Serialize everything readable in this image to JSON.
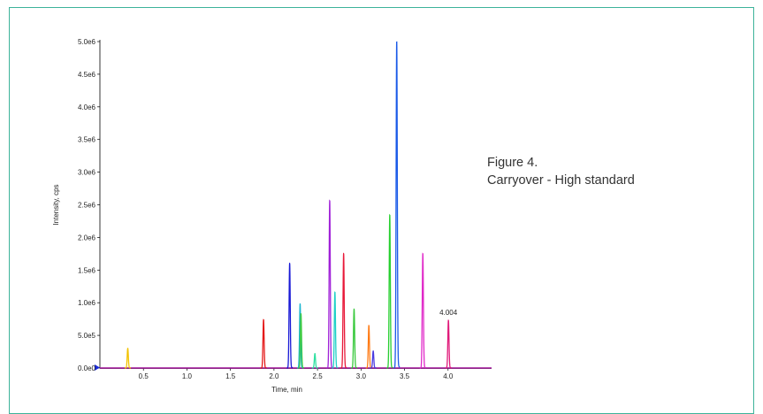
{
  "figure": {
    "caption_line1": "Figure 4.",
    "caption_line2": "Carryover - High standard"
  },
  "colors": {
    "frame": "#3cb39a",
    "axis": "#000000",
    "baseline": "#a3159b"
  },
  "chart_data": {
    "type": "line",
    "title": "",
    "xlabel": "Time, min",
    "ylabel": "Intensity, cps",
    "xlim": [
      0.0,
      4.5
    ],
    "ylim": [
      0,
      5000000
    ],
    "xticks": [
      0.5,
      1.0,
      1.5,
      2.0,
      2.5,
      3.0,
      3.5,
      4.0
    ],
    "xtick_labels": [
      "0.5",
      "1.0",
      "1.5",
      "2.0",
      "2.5",
      "3.0",
      "3.5",
      "4.0"
    ],
    "yticks": [
      0,
      500000,
      1000000,
      1500000,
      2000000,
      2500000,
      3000000,
      3500000,
      4000000,
      4500000,
      5000000
    ],
    "ytick_labels": [
      "0.0e0",
      "5.0e5",
      "1.0e6",
      "1.5e6",
      "2.0e6",
      "2.5e6",
      "3.0e6",
      "3.5e6",
      "4.0e6",
      "4.5e6",
      "5.0e6"
    ],
    "grid": false,
    "series": [
      {
        "rt": 0.32,
        "height": 300000,
        "color": "#f2c200"
      },
      {
        "rt": 1.88,
        "height": 740000,
        "color": "#e41a1a"
      },
      {
        "rt": 2.18,
        "height": 1600000,
        "color": "#1a1ad6"
      },
      {
        "rt": 2.3,
        "height": 980000,
        "color": "#18b5d0"
      },
      {
        "rt": 2.31,
        "height": 830000,
        "color": "#3ecb3e"
      },
      {
        "rt": 2.47,
        "height": 220000,
        "color": "#2ee0a0"
      },
      {
        "rt": 2.64,
        "height": 2560000,
        "color": "#a020d8"
      },
      {
        "rt": 2.7,
        "height": 1160000,
        "color": "#20d0c8"
      },
      {
        "rt": 2.8,
        "height": 1750000,
        "color": "#e81a3a"
      },
      {
        "rt": 2.92,
        "height": 900000,
        "color": "#36c83a"
      },
      {
        "rt": 3.09,
        "height": 650000,
        "color": "#ff7a14"
      },
      {
        "rt": 3.14,
        "height": 260000,
        "color": "#4a3ae0"
      },
      {
        "rt": 3.33,
        "height": 2340000,
        "color": "#28d030"
      },
      {
        "rt": 3.41,
        "height": 5000000,
        "color": "#1a5ae8"
      },
      {
        "rt": 3.71,
        "height": 1750000,
        "color": "#e028c8"
      },
      {
        "rt": 4.004,
        "height": 730000,
        "color": "#e01a7a"
      }
    ],
    "annotations": [
      {
        "text": "4.004",
        "x": 4.004,
        "y": 730000
      }
    ]
  }
}
